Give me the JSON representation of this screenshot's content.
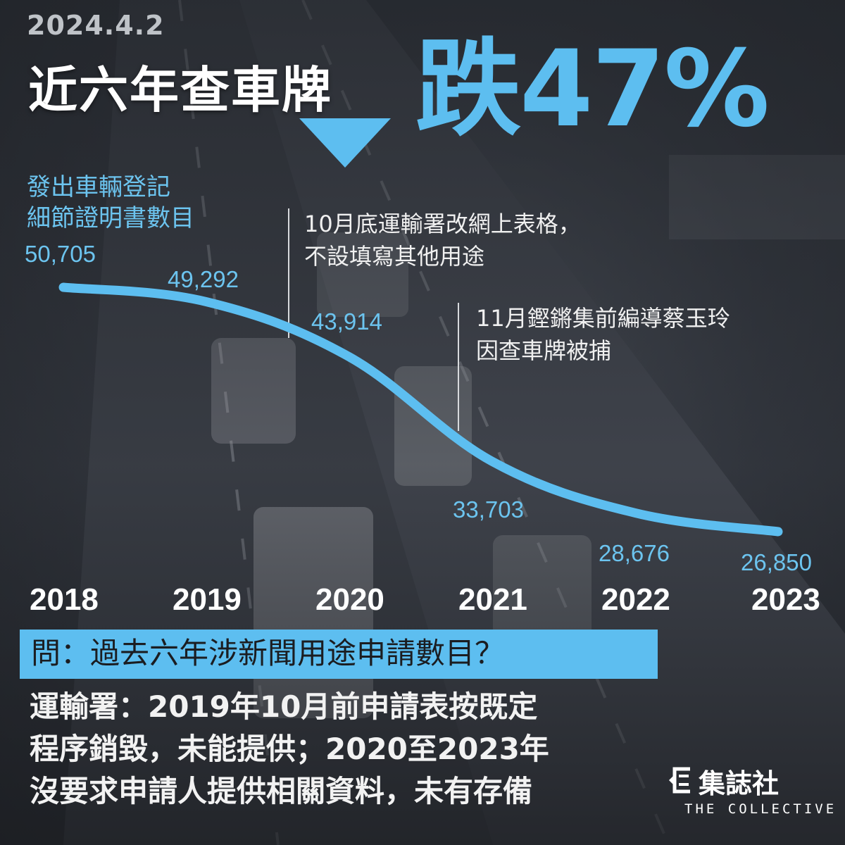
{
  "date": "2024.4.2",
  "headline": {
    "main": "近六年查車牌",
    "drop": "跌47%"
  },
  "series_label": [
    "發出車輛登記",
    "細節證明書數目"
  ],
  "annotations": {
    "note_2019": [
      "10月底運輸署改網上表格，",
      "不設填寫其他用途"
    ],
    "note_2021": [
      "11月鏗鏘集前編導蔡玉玲",
      "因查車牌被捕"
    ]
  },
  "chart_data": {
    "type": "line",
    "categories": [
      "2018",
      "2019",
      "2020",
      "2021",
      "2022",
      "2023"
    ],
    "values": [
      50705,
      49292,
      43914,
      33703,
      28676,
      26850
    ],
    "data_labels": [
      "50,705",
      "49,292",
      "43,914",
      "33,703",
      "28,676",
      "26,850"
    ],
    "title": "近六年查車牌跌47%",
    "ylabel": "發出車輛登記細節證明書數目",
    "ylim": [
      25000,
      52000
    ],
    "grid": false,
    "legend": "none",
    "line_color": "#5dbef0",
    "label_color": "#6cc4ef",
    "marker_lines_at": [
      "2019",
      "2021"
    ]
  },
  "question": "問：過去六年涉新聞用途申請數目？",
  "answer": [
    "運輸署：2019年10月前申請表按既定",
    "程序銷毀，未能提供；2020至2023年",
    "沒要求申請人提供相關資料，未有存備"
  ],
  "brand": {
    "name": "集誌社",
    "sub": "THE COLLECTIVE",
    "accent_color": "#5dbef0"
  }
}
